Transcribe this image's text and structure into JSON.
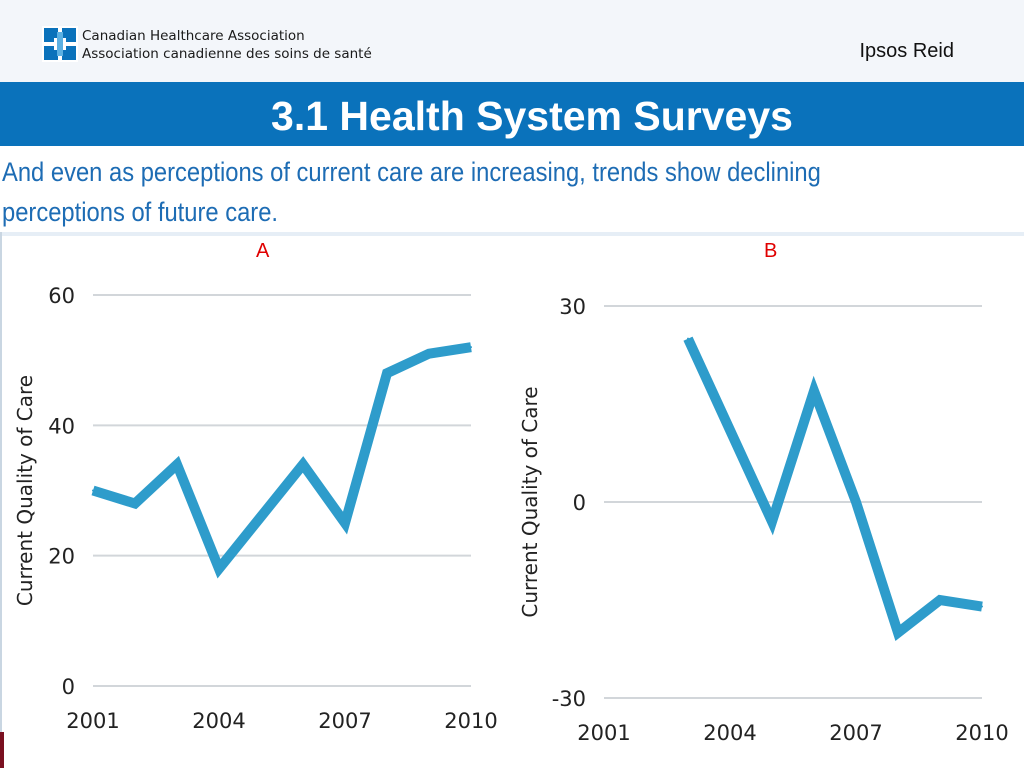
{
  "header": {
    "org_name_en": "Canadian Healthcare Association",
    "org_name_fr": "Association canadienne des soins de santé",
    "partner": "Ipsos Reid",
    "accent_color": "#0a72bb"
  },
  "slide": {
    "title": "3.1 Health System Surveys",
    "subtitle": "And even as perceptions of current care are increasing, trends show declining perceptions of future care."
  },
  "chart_data": [
    {
      "panel_label": "A",
      "type": "line",
      "title": "",
      "xlabel": "",
      "ylabel": "Current Quality of Care",
      "x": [
        2001,
        2002,
        2003,
        2004,
        2005,
        2006,
        2007,
        2008,
        2009,
        2010
      ],
      "series": [
        {
          "values": [
            30,
            28,
            34,
            18,
            26,
            34,
            25,
            48,
            51,
            52
          ],
          "color": "#2e9ccb"
        }
      ],
      "xticks": [
        "2001",
        "2004",
        "2007",
        "2010"
      ],
      "yticks": [
        "0",
        "20",
        "40",
        "60"
      ],
      "xlim": [
        2001,
        2010
      ],
      "ylim": [
        0,
        60
      ],
      "grid": "horizontal"
    },
    {
      "panel_label": "B",
      "type": "line",
      "title": "",
      "xlabel": "",
      "ylabel": "Current Quality of Care",
      "x": [
        2003,
        2004,
        2005,
        2006,
        2007,
        2008,
        2009,
        2010
      ],
      "series": [
        {
          "values": [
            25,
            11,
            -3,
            17,
            0,
            -20,
            -15,
            -16
          ],
          "color": "#2e9ccb"
        }
      ],
      "xticks": [
        "2001",
        "2004",
        "2007",
        "2010"
      ],
      "yticks": [
        "-30",
        "0",
        "30"
      ],
      "xlim": [
        2001,
        2010
      ],
      "ylim": [
        -30,
        30
      ],
      "grid": "horizontal"
    }
  ]
}
